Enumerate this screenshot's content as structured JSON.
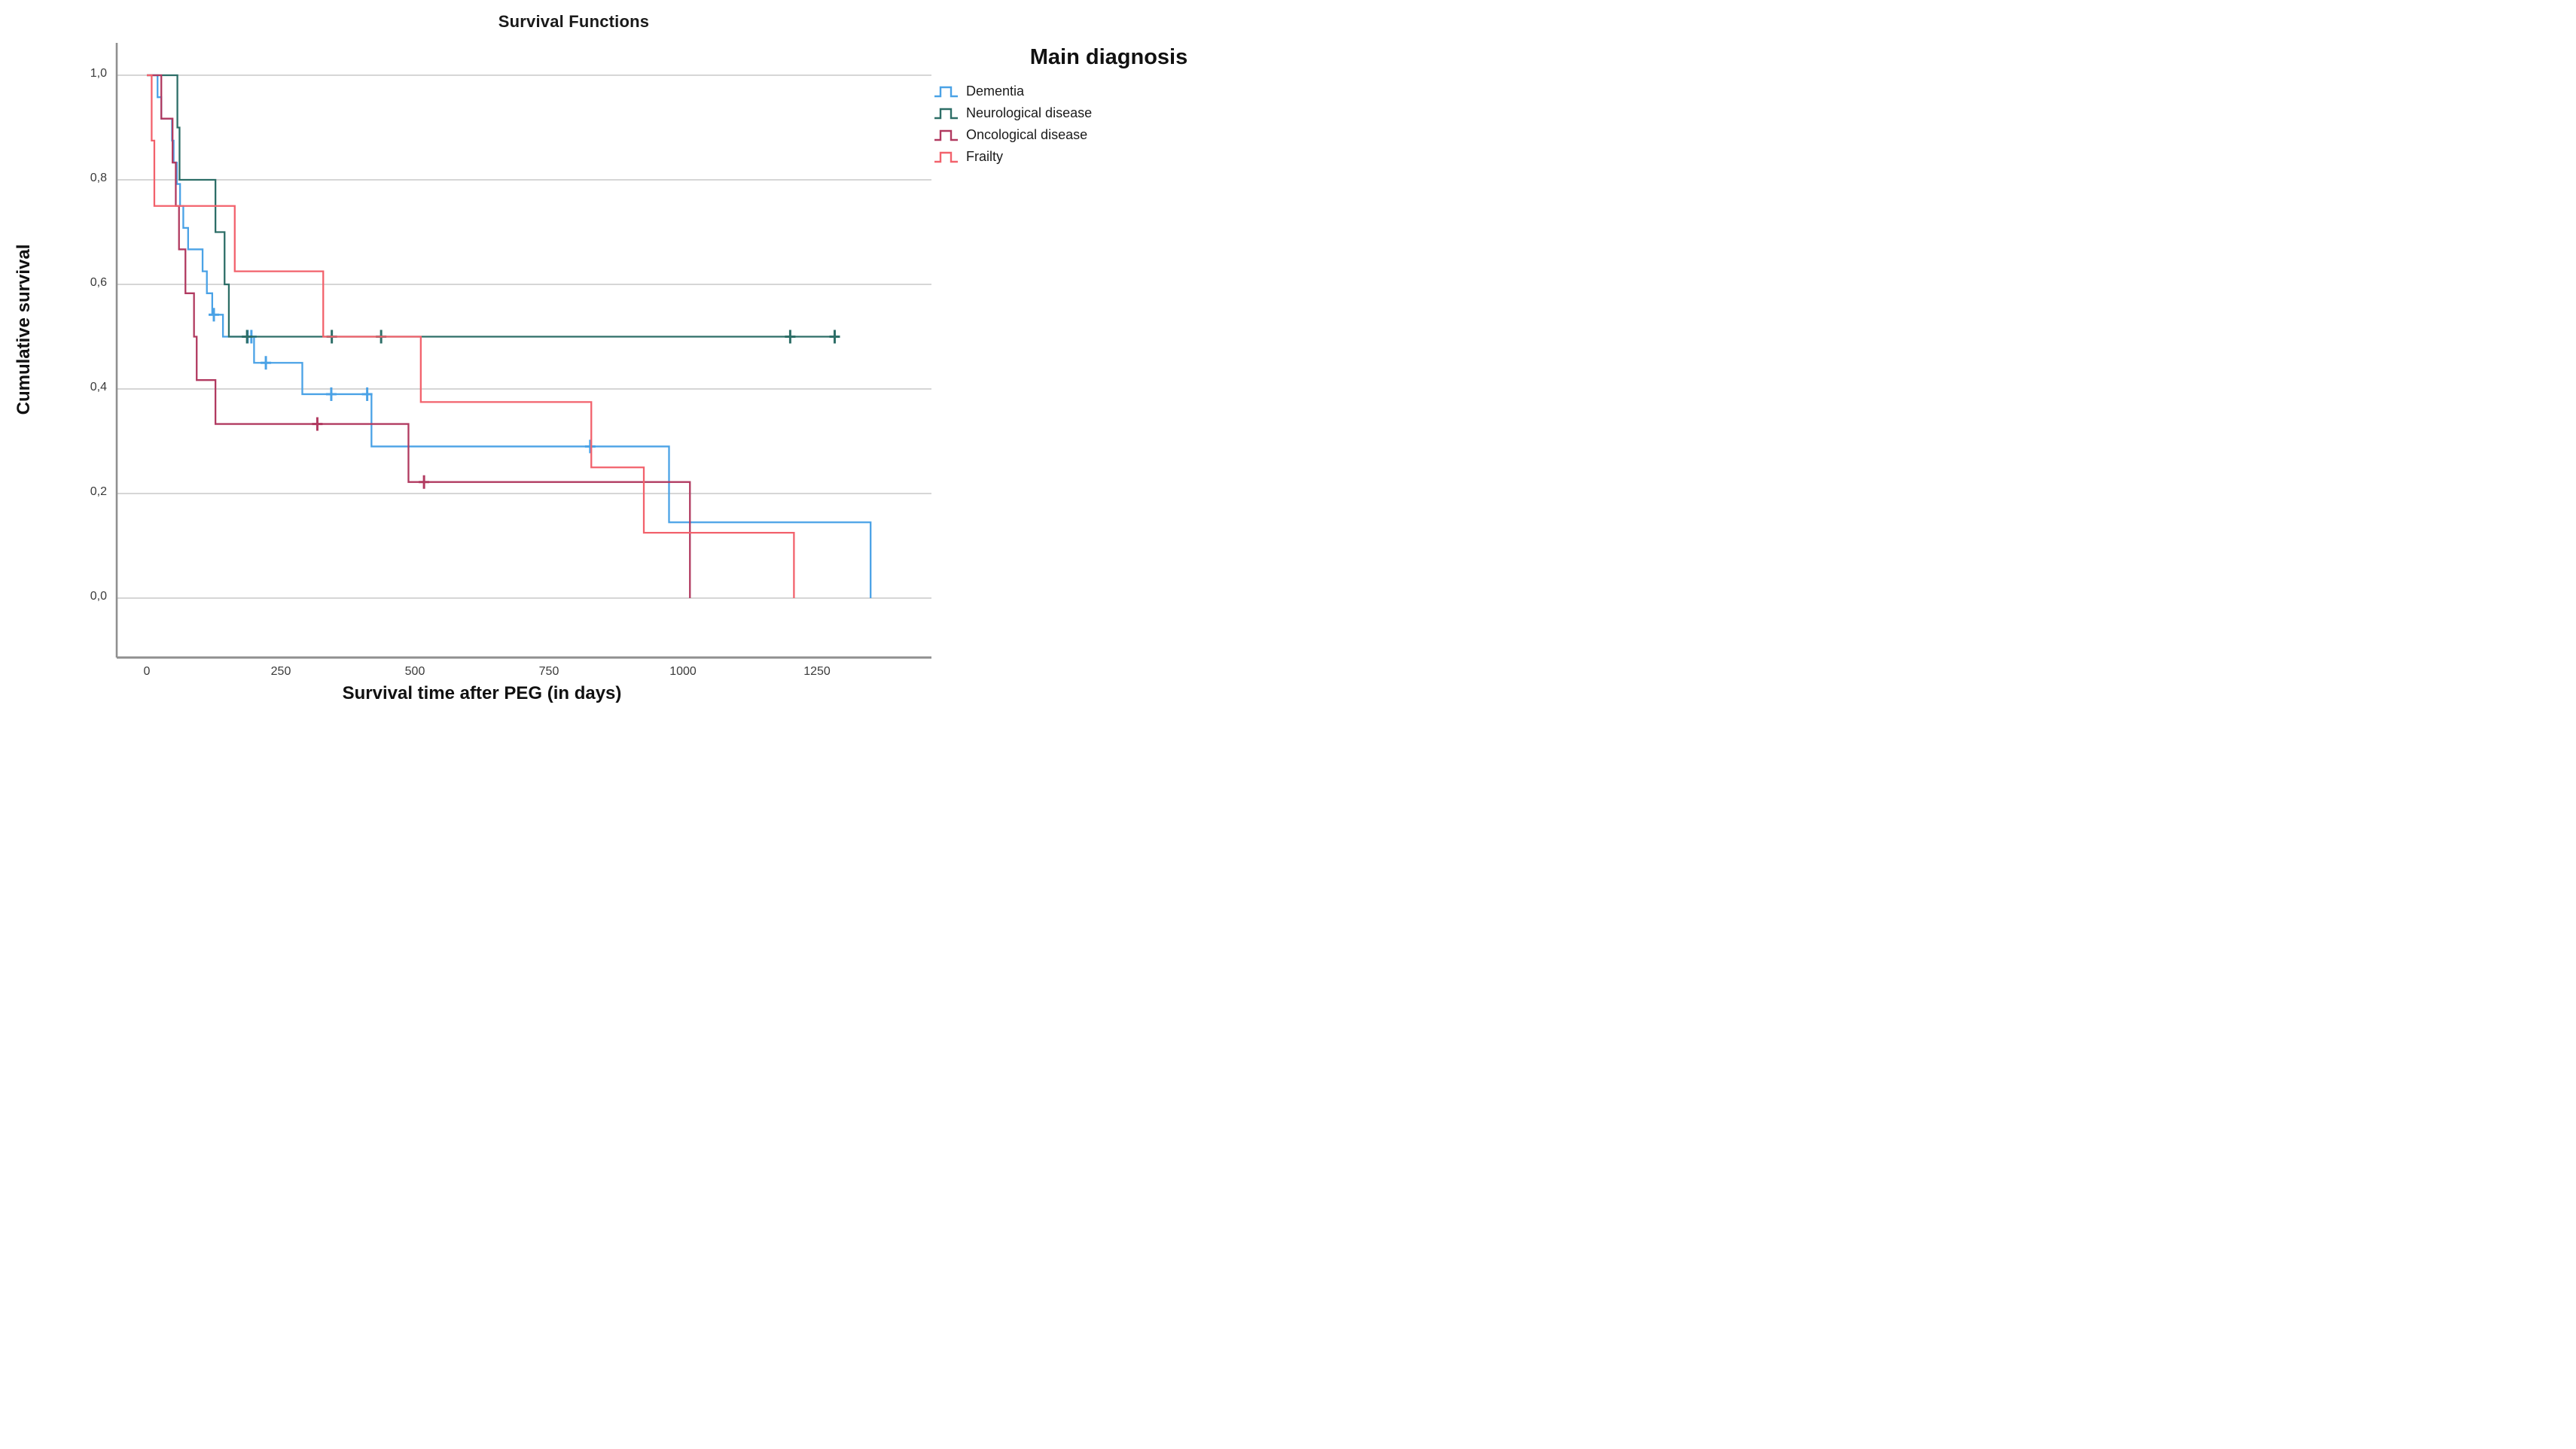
{
  "chart_data": {
    "type": "line",
    "subtype": "kaplan-meier-step",
    "title": "Survival Functions",
    "xlabel": "Survival time after PEG (in days)",
    "ylabel": "Cumulative survival",
    "legend_title": "Main diagnosis",
    "x_ticks": [
      0,
      250,
      500,
      750,
      1000,
      1250
    ],
    "x_tick_labels": [
      "0",
      "250",
      "500",
      "750",
      "1000",
      "1250"
    ],
    "y_ticks": [
      1.0,
      0.8,
      0.6,
      0.4,
      0.2,
      0.0
    ],
    "y_tick_labels": [
      "1,0",
      "0,8",
      "0,6",
      "0,4",
      "0,2",
      "0,0"
    ],
    "xlim": [
      -56,
      1463
    ],
    "ylim": [
      0,
      1
    ],
    "grid": "horizontal",
    "legend_position": "right",
    "background_color": "#ffffff",
    "gridline_color": "#c9c9c9",
    "axis_color": "#8f8f8f",
    "series": [
      {
        "name": "Dementia",
        "color": "#4AA2E6",
        "steps": [
          [
            0,
            1.0
          ],
          [
            20,
            0.958
          ],
          [
            27,
            0.917
          ],
          [
            47,
            0.875
          ],
          [
            50,
            0.833
          ],
          [
            56,
            0.792
          ],
          [
            62,
            0.75
          ],
          [
            68,
            0.708
          ],
          [
            77,
            0.667
          ],
          [
            104,
            0.625
          ],
          [
            112,
            0.583
          ],
          [
            122,
            0.542
          ],
          [
            142,
            0.5
          ],
          [
            200,
            0.45
          ],
          [
            290,
            0.39
          ],
          [
            419,
            0.29
          ],
          [
            974,
            0.145
          ],
          [
            1350,
            0.0
          ]
        ],
        "end": 1350,
        "censors": [
          [
            125,
            0.542
          ],
          [
            188,
            0.5
          ],
          [
            195,
            0.5
          ],
          [
            222,
            0.45
          ],
          [
            344,
            0.39
          ],
          [
            411,
            0.39
          ],
          [
            827,
            0.29
          ]
        ]
      },
      {
        "name": "Neurological disease",
        "color": "#2D6E67",
        "steps": [
          [
            0,
            1.0
          ],
          [
            57,
            0.9
          ],
          [
            61,
            0.8
          ],
          [
            128,
            0.7
          ],
          [
            145,
            0.6
          ],
          [
            153,
            0.5
          ]
        ],
        "end": 1292,
        "censors": [
          [
            187,
            0.5
          ],
          [
            345,
            0.5
          ],
          [
            437,
            0.5
          ],
          [
            1200,
            0.5
          ],
          [
            1283,
            0.5
          ]
        ]
      },
      {
        "name": "Oncological disease",
        "color": "#B13A60",
        "steps": [
          [
            0,
            1.0
          ],
          [
            27,
            0.917
          ],
          [
            48,
            0.833
          ],
          [
            54,
            0.75
          ],
          [
            60,
            0.667
          ],
          [
            72,
            0.583
          ],
          [
            88,
            0.5
          ],
          [
            93,
            0.417
          ],
          [
            128,
            0.333
          ],
          [
            488,
            0.222
          ],
          [
            1013,
            0.0
          ]
        ],
        "end": 1013,
        "censors": [
          [
            318,
            0.333
          ],
          [
            517,
            0.222
          ]
        ]
      },
      {
        "name": "Frailty",
        "color": "#F2626C",
        "steps": [
          [
            0,
            1.0
          ],
          [
            9,
            0.875
          ],
          [
            14,
            0.75
          ],
          [
            164,
            0.625
          ],
          [
            329,
            0.5
          ],
          [
            511,
            0.375
          ],
          [
            829,
            0.25
          ],
          [
            927,
            0.125
          ],
          [
            1207,
            0.0
          ]
        ],
        "end": 1207,
        "censors": []
      }
    ]
  }
}
